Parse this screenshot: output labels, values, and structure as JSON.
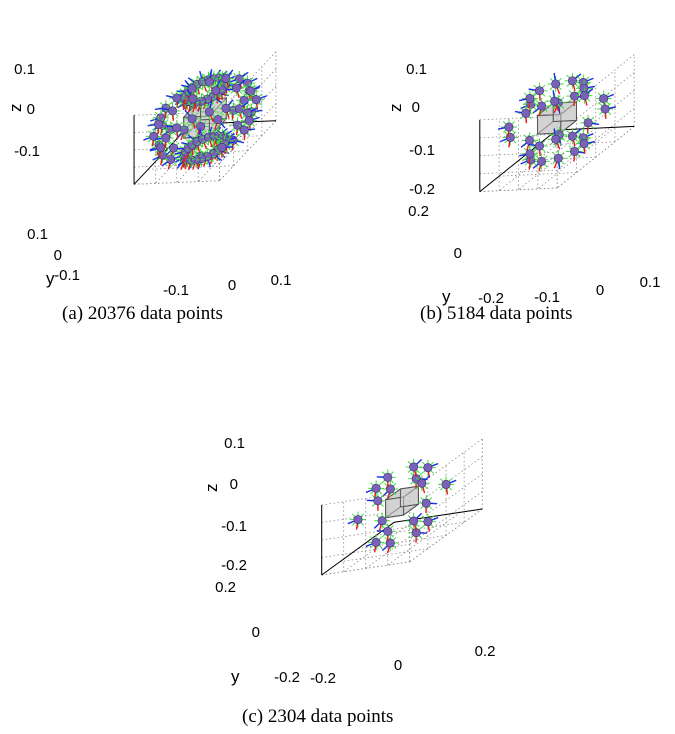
{
  "figure": {
    "captions": [
      "(a) 20376 data points",
      "(b) 5184 data points",
      "(c) 2304 data points"
    ]
  },
  "colors": {
    "marker_fill": "#7a62b8",
    "marker_spikes": "#3ddc3d",
    "arrow_red": "#e81a1a",
    "arrow_blue": "#1a2ee8",
    "cube_fill": "#c9c9c9",
    "cube_edge": "#555555",
    "grid": "#8a8a8a"
  },
  "chart_data": [
    {
      "type": "scatter",
      "caption": "(a) 20376 data points",
      "zlabel": "z",
      "ylabel": "y",
      "xlabel": "",
      "z_ticks": [
        "0.1",
        "0",
        "-0.1"
      ],
      "y_ticks": [
        "0.1",
        "0",
        "-0.1"
      ],
      "x_ticks": [
        "-0.1",
        "0",
        "0.1"
      ],
      "xlim": [
        -0.15,
        0.15
      ],
      "ylim": [
        -0.15,
        0.15
      ],
      "zlim": [
        -0.15,
        0.15
      ],
      "grid": true,
      "object": "cube at origin",
      "rings": [
        {
          "name": "top",
          "z": 0.12,
          "radius": 0.06,
          "points": 22
        },
        {
          "name": "upper",
          "z": 0.06,
          "radius": 0.13,
          "points": 16
        },
        {
          "name": "equator",
          "z": 0.0,
          "radius": 0.15,
          "points": 14
        },
        {
          "name": "lower",
          "z": -0.07,
          "radius": 0.13,
          "points": 16
        },
        {
          "name": "bottom",
          "z": -0.13,
          "radius": 0.06,
          "points": 22
        }
      ]
    },
    {
      "type": "scatter",
      "caption": "(b) 5184 data points",
      "zlabel": "z",
      "ylabel": "y",
      "xlabel": "",
      "z_ticks": [
        "0.1",
        "0",
        "-0.1",
        "-0.2"
      ],
      "y_ticks": [
        "0.2",
        "0",
        "-0.2"
      ],
      "x_ticks": [
        "-0.1",
        "0",
        "0.1"
      ],
      "xlim": [
        -0.15,
        0.15
      ],
      "ylim": [
        -0.22,
        0.22
      ],
      "zlim": [
        -0.2,
        0.15
      ],
      "grid": true,
      "object": "cube at origin",
      "rings": [
        {
          "name": "top",
          "z": 0.12,
          "radius": 0.09,
          "points": 10
        },
        {
          "name": "equator",
          "z": 0.0,
          "radius": 0.16,
          "points": 10
        },
        {
          "name": "bottom",
          "z": -0.15,
          "radius": 0.09,
          "points": 10
        }
      ]
    },
    {
      "type": "scatter",
      "caption": "(c) 2304 data points",
      "zlabel": "z",
      "ylabel": "y",
      "xlabel": "",
      "z_ticks": [
        "0.1",
        "0",
        "-0.1",
        "-0.2"
      ],
      "y_ticks": [
        "0.2",
        "0",
        "-0.2"
      ],
      "x_ticks": [
        "-0.2",
        "0",
        "0.2"
      ],
      "xlim": [
        -0.22,
        0.22
      ],
      "ylim": [
        -0.22,
        0.22
      ],
      "zlim": [
        -0.2,
        0.15
      ],
      "grid": true,
      "object": "cube at origin",
      "rings": [
        {
          "name": "top",
          "z": 0.12,
          "radius": 0.1,
          "points": 6
        },
        {
          "name": "equator",
          "z": 0.0,
          "radius": 0.17,
          "points": 6
        },
        {
          "name": "bottom",
          "z": -0.15,
          "radius": 0.1,
          "points": 6
        }
      ]
    }
  ]
}
